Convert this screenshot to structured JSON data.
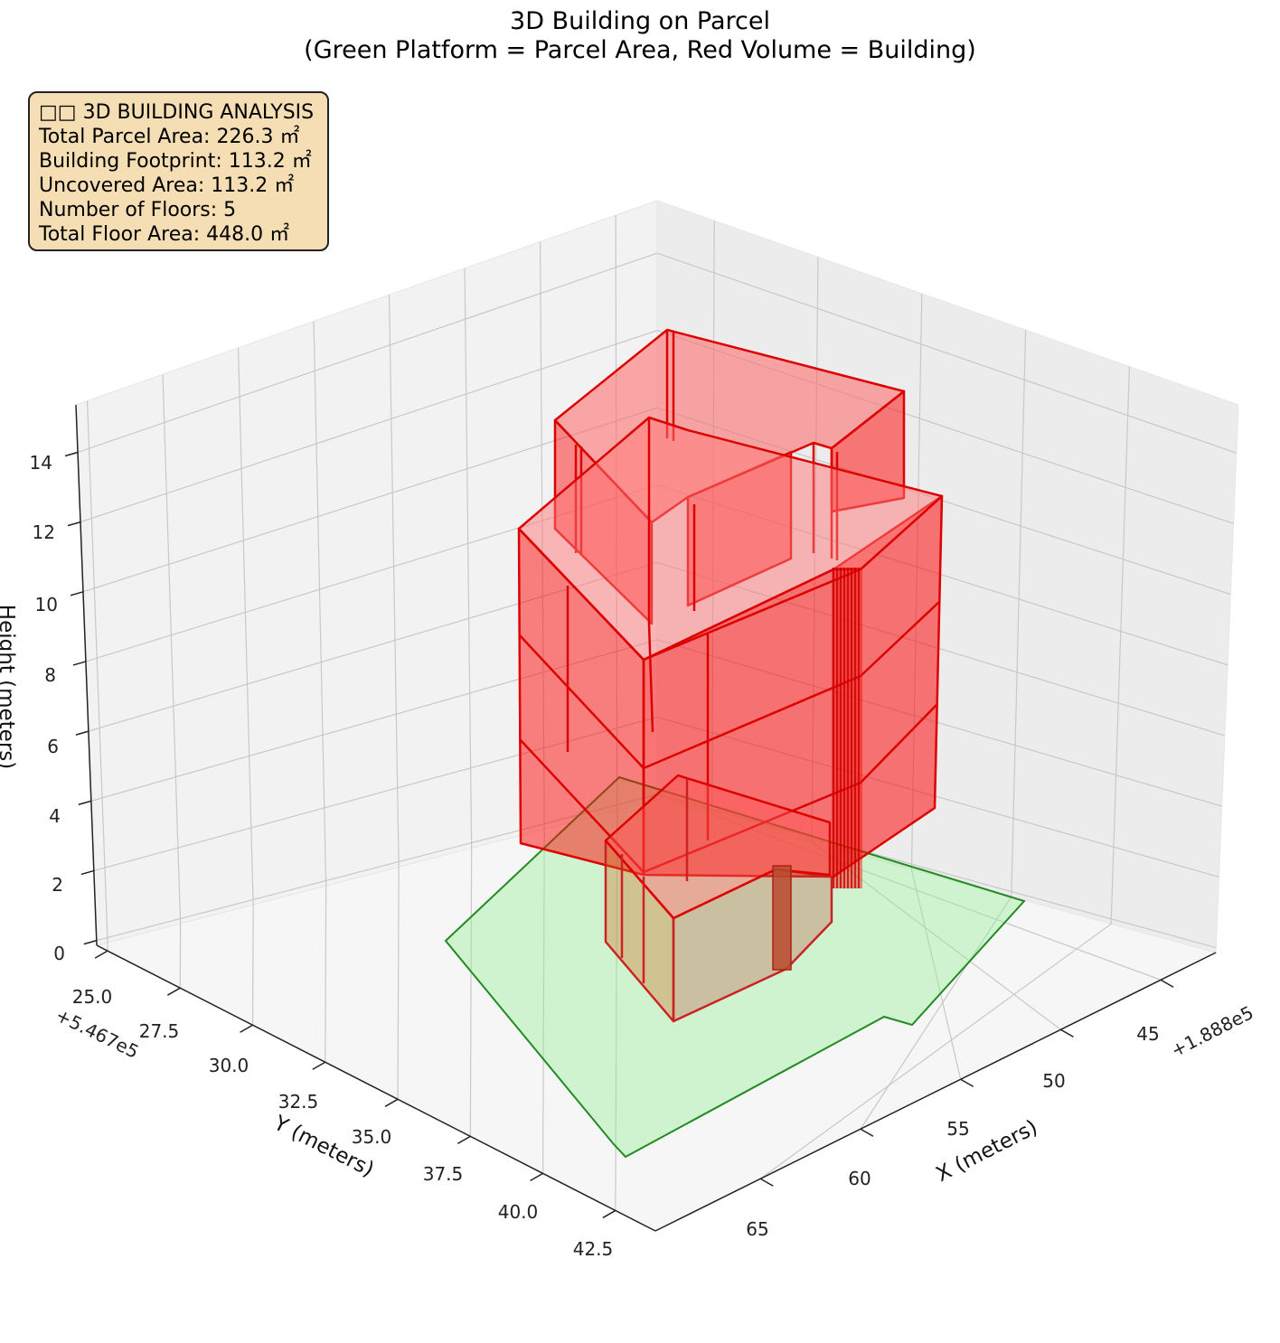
{
  "chart_data": {
    "type": "3d-surface",
    "title": "3D Building on Parcel",
    "subtitle": "(Green Platform = Parcel Area, Red Volume = Building)",
    "xlabel": "X (meters)",
    "ylabel": "Y (meters)",
    "zlabel": "Height (meters)",
    "x_offset_label": "+1.888e5",
    "y_offset_label": "+5.467e5",
    "x_ticks": [
      "45",
      "50",
      "55",
      "60",
      "65"
    ],
    "y_ticks": [
      "25.0",
      "27.5",
      "30.0",
      "32.5",
      "35.0",
      "37.5",
      "40.0",
      "42.5"
    ],
    "z_ticks": [
      "0",
      "2",
      "4",
      "6",
      "8",
      "10",
      "12",
      "14"
    ],
    "grid": true,
    "series": [
      {
        "name": "Parcel Area",
        "color": "#90ee90",
        "edge_color": "#228b22"
      },
      {
        "name": "Building",
        "color": "#ff0000",
        "edge_color": "#cc0000"
      }
    ],
    "floors": 5,
    "annotation": {
      "heading": "□□ 3D BUILDING ANALYSIS",
      "lines": [
        "Total Parcel Area: 226.3 ㎡",
        "Building Footprint: 113.2 ㎡",
        "Uncovered Area: 113.2 ㎡",
        "Number of Floors: 5",
        "Total Floor Area: 448.0 ㎡"
      ]
    }
  }
}
